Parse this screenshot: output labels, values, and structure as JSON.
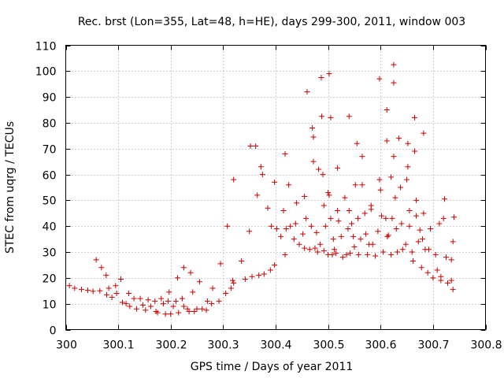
{
  "chart_data": {
    "type": "scatter",
    "title": "Rec. brst (Lon=355, Lat=48, h=HE), days 299-300, 2011, window 003",
    "xlabel": "GPS time / Days of year 2011",
    "ylabel": "STEC from uqrg / TECUs",
    "xlim": [
      300,
      300.8
    ],
    "ylim": [
      0,
      110
    ],
    "xticks": [
      "300",
      "300.1",
      "300.2",
      "300.3",
      "300.4",
      "300.5",
      "300.6",
      "300.7",
      "300.8"
    ],
    "yticks": [
      "0",
      "10",
      "20",
      "30",
      "40",
      "50",
      "60",
      "70",
      "80",
      "90",
      "100",
      "110"
    ],
    "grid": true,
    "marker": "+",
    "color": "#cc0000",
    "points": [
      [
        300.007,
        17
      ],
      [
        300.017,
        16
      ],
      [
        300.03,
        15.5
      ],
      [
        300.042,
        15.2
      ],
      [
        300.052,
        14.8
      ],
      [
        300.058,
        27
      ],
      [
        300.065,
        15
      ],
      [
        300.068,
        24
      ],
      [
        300.077,
        21
      ],
      [
        300.078,
        13.5
      ],
      [
        300.082,
        16
      ],
      [
        300.088,
        12.5
      ],
      [
        300.095,
        17
      ],
      [
        300.097,
        14
      ],
      [
        300.105,
        19.5
      ],
      [
        300.108,
        10.5
      ],
      [
        300.115,
        10
      ],
      [
        300.12,
        14
      ],
      [
        300.122,
        9
      ],
      [
        300.13,
        12
      ],
      [
        300.135,
        8
      ],
      [
        300.142,
        12
      ],
      [
        300.147,
        9.5
      ],
      [
        300.152,
        7.5
      ],
      [
        300.157,
        11.5
      ],
      [
        300.162,
        9
      ],
      [
        300.17,
        11
      ],
      [
        300.172,
        7
      ],
      [
        300.175,
        6.5
      ],
      [
        300.182,
        12
      ],
      [
        300.186,
        10
      ],
      [
        300.19,
        6
      ],
      [
        300.195,
        11
      ],
      [
        300.2,
        6
      ],
      [
        300.197,
        14.5
      ],
      [
        300.205,
        9
      ],
      [
        300.21,
        11
      ],
      [
        300.213,
        20
      ],
      [
        300.215,
        6.5
      ],
      [
        300.222,
        12
      ],
      [
        300.225,
        24
      ],
      [
        300.225,
        9
      ],
      [
        300.232,
        8
      ],
      [
        300.235,
        7
      ],
      [
        300.238,
        22
      ],
      [
        300.242,
        14.5
      ],
      [
        300.245,
        7
      ],
      [
        300.25,
        8
      ],
      [
        300.255,
        18.5
      ],
      [
        300.26,
        8
      ],
      [
        300.268,
        7.5
      ],
      [
        300.27,
        11
      ],
      [
        300.278,
        10
      ],
      [
        300.28,
        16
      ],
      [
        300.292,
        11
      ],
      [
        300.295,
        25.5
      ],
      [
        300.305,
        14
      ],
      [
        300.308,
        40
      ],
      [
        300.315,
        16
      ],
      [
        300.318,
        19
      ],
      [
        300.32,
        58
      ],
      [
        300.32,
        18
      ],
      [
        300.335,
        26.5
      ],
      [
        300.342,
        19.5
      ],
      [
        300.35,
        38
      ],
      [
        300.352,
        71
      ],
      [
        300.355,
        20.5
      ],
      [
        300.362,
        71
      ],
      [
        300.365,
        52
      ],
      [
        300.368,
        21
      ],
      [
        300.372,
        63
      ],
      [
        300.375,
        60
      ],
      [
        300.378,
        21.5
      ],
      [
        300.385,
        47
      ],
      [
        300.39,
        23
      ],
      [
        300.392,
        40
      ],
      [
        300.398,
        57
      ],
      [
        300.398,
        25
      ],
      [
        300.402,
        39
      ],
      [
        300.41,
        36
      ],
      [
        300.415,
        46
      ],
      [
        300.418,
        68
      ],
      [
        300.418,
        29
      ],
      [
        300.42,
        39
      ],
      [
        300.425,
        56
      ],
      [
        300.428,
        40
      ],
      [
        300.435,
        35
      ],
      [
        300.438,
        41
      ],
      [
        300.44,
        49
      ],
      [
        300.445,
        33
      ],
      [
        300.452,
        37
      ],
      [
        300.455,
        51.5
      ],
      [
        300.455,
        31.5
      ],
      [
        300.458,
        43
      ],
      [
        300.46,
        92
      ],
      [
        300.465,
        31
      ],
      [
        300.468,
        40
      ],
      [
        300.47,
        78
      ],
      [
        300.472,
        74.5
      ],
      [
        300.472,
        65
      ],
      [
        300.475,
        31.5
      ],
      [
        300.478,
        37.5
      ],
      [
        300.48,
        30
      ],
      [
        300.482,
        62
      ],
      [
        300.485,
        33
      ],
      [
        300.487,
        97.5
      ],
      [
        300.488,
        82.5
      ],
      [
        300.49,
        60
      ],
      [
        300.492,
        48
      ],
      [
        300.492,
        30.5
      ],
      [
        300.495,
        40
      ],
      [
        300.5,
        53
      ],
      [
        300.5,
        29
      ],
      [
        300.502,
        99
      ],
      [
        300.502,
        52
      ],
      [
        300.505,
        82
      ],
      [
        300.505,
        43
      ],
      [
        300.508,
        29
      ],
      [
        300.51,
        35
      ],
      [
        300.512,
        31
      ],
      [
        300.515,
        29.5
      ],
      [
        300.518,
        62.5
      ],
      [
        300.518,
        46
      ],
      [
        300.52,
        42
      ],
      [
        300.525,
        36
      ],
      [
        300.528,
        28
      ],
      [
        300.532,
        51
      ],
      [
        300.535,
        29
      ],
      [
        300.538,
        39
      ],
      [
        300.54,
        82.5
      ],
      [
        300.54,
        46
      ],
      [
        300.542,
        29.5
      ],
      [
        300.545,
        41
      ],
      [
        300.548,
        36
      ],
      [
        300.55,
        32
      ],
      [
        300.552,
        56
      ],
      [
        300.555,
        72
      ],
      [
        300.557,
        43
      ],
      [
        300.558,
        29
      ],
      [
        300.562,
        35
      ],
      [
        300.565,
        67
      ],
      [
        300.565,
        56
      ],
      [
        300.57,
        45
      ],
      [
        300.572,
        37
      ],
      [
        300.575,
        29
      ],
      [
        300.578,
        33
      ],
      [
        300.582,
        48
      ],
      [
        300.582,
        46.5
      ],
      [
        300.585,
        33
      ],
      [
        300.59,
        28.5
      ],
      [
        300.595,
        38
      ],
      [
        300.598,
        97
      ],
      [
        300.598,
        58
      ],
      [
        300.6,
        54
      ],
      [
        300.602,
        44
      ],
      [
        300.605,
        30
      ],
      [
        300.61,
        43
      ],
      [
        300.612,
        85
      ],
      [
        300.612,
        73
      ],
      [
        300.613,
        36
      ],
      [
        300.615,
        36.5
      ],
      [
        300.62,
        29
      ],
      [
        300.62,
        59
      ],
      [
        300.622,
        43
      ],
      [
        300.625,
        102.5
      ],
      [
        300.625,
        95.5
      ],
      [
        300.625,
        67
      ],
      [
        300.628,
        51
      ],
      [
        300.63,
        39
      ],
      [
        300.632,
        30
      ],
      [
        300.635,
        74
      ],
      [
        300.638,
        55
      ],
      [
        300.64,
        41
      ],
      [
        300.642,
        31
      ],
      [
        300.648,
        33
      ],
      [
        300.65,
        58
      ],
      [
        300.652,
        72
      ],
      [
        300.652,
        63
      ],
      [
        300.655,
        46
      ],
      [
        300.655,
        40
      ],
      [
        300.66,
        30
      ],
      [
        300.662,
        26.5
      ],
      [
        300.665,
        82
      ],
      [
        300.665,
        69
      ],
      [
        300.668,
        50
      ],
      [
        300.668,
        44
      ],
      [
        300.672,
        34
      ],
      [
        300.675,
        38.5
      ],
      [
        300.678,
        24
      ],
      [
        300.68,
        35
      ],
      [
        300.682,
        76
      ],
      [
        300.682,
        45
      ],
      [
        300.685,
        31
      ],
      [
        300.69,
        22
      ],
      [
        300.692,
        31
      ],
      [
        300.695,
        39
      ],
      [
        300.7,
        20
      ],
      [
        300.705,
        29
      ],
      [
        300.708,
        23
      ],
      [
        300.712,
        41
      ],
      [
        300.715,
        20.5
      ],
      [
        300.715,
        19
      ],
      [
        300.72,
        43
      ],
      [
        300.722,
        50.5
      ],
      [
        300.725,
        28
      ],
      [
        300.728,
        18
      ],
      [
        300.735,
        19
      ],
      [
        300.735,
        27
      ],
      [
        300.738,
        15.5
      ],
      [
        300.738,
        34
      ],
      [
        300.74,
        43.5
      ]
    ]
  }
}
